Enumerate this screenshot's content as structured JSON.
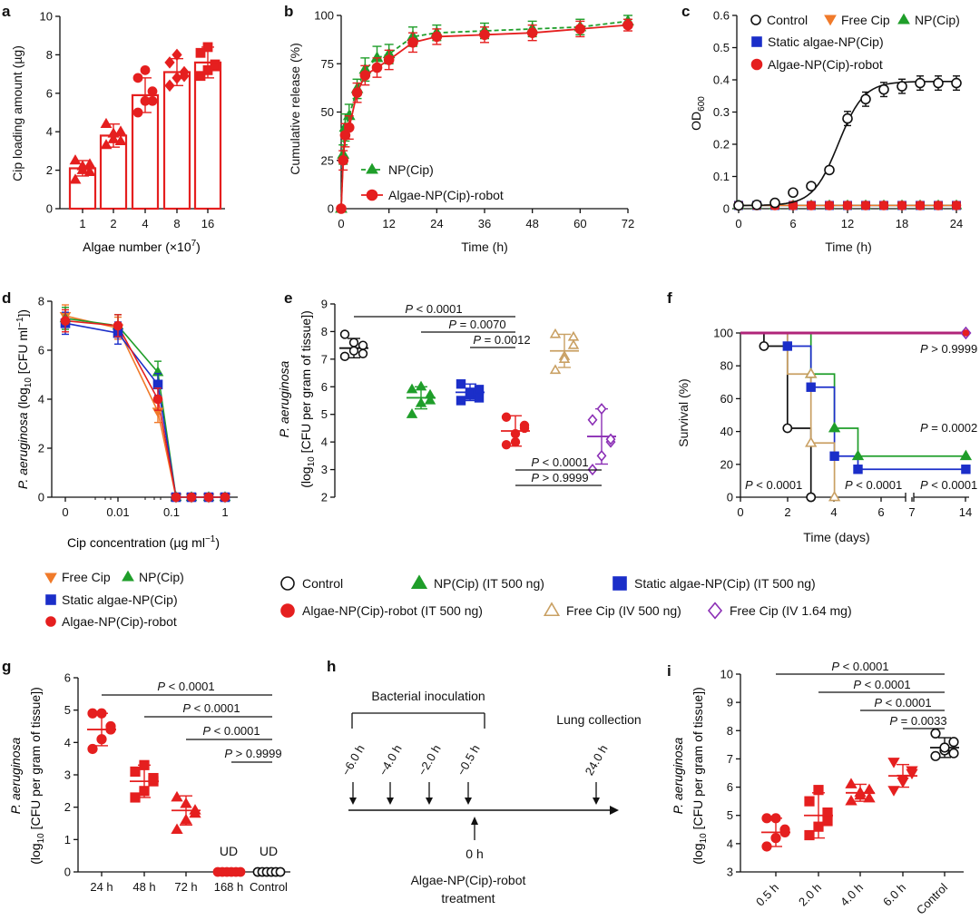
{
  "colors": {
    "control": "#111111",
    "free_cip": "#f07a2a",
    "np_cip": "#1f9e2a",
    "static": "#1b2ec9",
    "robot": "#e51f1f",
    "free_iv500": "#c9a063",
    "free_iv164": "#8b2fb5",
    "survival_all": "#b0247a"
  },
  "legend_mid": {
    "free_cip": "Free Cip",
    "np_cip": "NP(Cip)",
    "static": "Static algae-NP(Cip)",
    "robot": "Algae-NP(Cip)-robot",
    "control": "Control",
    "np_it": "NP(Cip) (IT 500 ng)",
    "static_it": "Static algae-NP(Cip) (IT 500 ng)",
    "robot_it": "Algae-NP(Cip)-robot (IT 500 ng)",
    "free_iv500": "Free Cip (IV 500 ng)",
    "free_iv164": "Free Cip (IV 1.64 mg)"
  },
  "panel_h_text": {
    "bacterial": "Bacterial inoculation",
    "lung": "Lung collection",
    "times": [
      "−6.0 h",
      "−4.0 h",
      "−2.0 h",
      "−0.5 h",
      "24.0 h"
    ],
    "zero": "0 h",
    "treat1": "Algae-NP(Cip)-robot",
    "treat2": "treatment"
  },
  "chart_data": [
    {
      "panel": "a",
      "type": "bar",
      "xlabel": "Algae number (×10⁷)",
      "ylabel": "Cip loading amount (µg)",
      "categories": [
        "1",
        "2",
        "4",
        "8",
        "16"
      ],
      "values": [
        2.1,
        3.8,
        5.9,
        7.1,
        7.6
      ],
      "errors": [
        0.4,
        0.6,
        0.9,
        0.7,
        0.8
      ],
      "points": [
        [
          1.5,
          2.0,
          2.3,
          2.5,
          2.2,
          1.9
        ],
        [
          3.3,
          3.6,
          4.0,
          4.4,
          3.9,
          3.5
        ],
        [
          5.0,
          5.6,
          6.1,
          6.8,
          7.2,
          5.6
        ],
        [
          6.4,
          6.8,
          7.1,
          7.6,
          8.0,
          6.9
        ],
        [
          6.9,
          7.2,
          7.5,
          8.1,
          8.4,
          7.4
        ]
      ],
      "ylim": [
        0,
        10
      ],
      "yticks": [
        0,
        2,
        4,
        6,
        8,
        10
      ]
    },
    {
      "panel": "b",
      "type": "line",
      "xlabel": "Time (h)",
      "ylabel": "Cumulative release (%)",
      "x": [
        0,
        0.5,
        1,
        2,
        4,
        6,
        9,
        12,
        18,
        24,
        36,
        48,
        60,
        72
      ],
      "series": [
        {
          "name": "NP(Cip)",
          "values": [
            0,
            28,
            42,
            48,
            62,
            72,
            78,
            80,
            89,
            91,
            92,
            93,
            94,
            97
          ],
          "errors": [
            0,
            5,
            7,
            6,
            5,
            6,
            6,
            5,
            5,
            4,
            4,
            4,
            4,
            3
          ]
        },
        {
          "name": "Algae-NP(Cip)-robot",
          "values": [
            0,
            25,
            38,
            42,
            60,
            69,
            73,
            77,
            86,
            89,
            90,
            91,
            93,
            95
          ],
          "errors": [
            0,
            5,
            6,
            6,
            5,
            5,
            5,
            5,
            5,
            4,
            4,
            4,
            4,
            3
          ]
        }
      ],
      "xticks": [
        0,
        12,
        24,
        36,
        48,
        60,
        72
      ],
      "yticks": [
        0,
        25,
        50,
        75,
        100
      ],
      "xlim": [
        0,
        72
      ],
      "ylim": [
        0,
        100
      ]
    },
    {
      "panel": "c",
      "type": "scatter",
      "xlabel": "Time (h)",
      "ylabel": "OD600",
      "ylabel_main": "OD",
      "ylabel_sub": "600",
      "x": [
        0,
        2,
        4,
        6,
        8,
        10,
        12,
        14,
        16,
        18,
        20,
        22,
        24
      ],
      "series": [
        {
          "name": "Control",
          "values": [
            0.01,
            0.012,
            0.018,
            0.05,
            0.07,
            0.12,
            0.28,
            0.34,
            0.37,
            0.38,
            0.39,
            0.39,
            0.39
          ]
        },
        {
          "name": "Free Cip",
          "values": [
            0.01,
            0.01,
            0.01,
            0.01,
            0.01,
            0.01,
            0.01,
            0.01,
            0.01,
            0.01,
            0.01,
            0.01,
            0.01
          ]
        },
        {
          "name": "NP(Cip)",
          "values": [
            0.01,
            0.01,
            0.01,
            0.01,
            0.01,
            0.01,
            0.01,
            0.01,
            0.01,
            0.01,
            0.01,
            0.01,
            0.01
          ]
        },
        {
          "name": "Static algae-NP(Cip)",
          "values": [
            0.01,
            0.01,
            0.01,
            0.01,
            0.01,
            0.01,
            0.01,
            0.01,
            0.01,
            0.01,
            0.01,
            0.01,
            0.01
          ]
        },
        {
          "name": "Algae-NP(Cip)-robot",
          "values": [
            0.01,
            0.01,
            0.01,
            0.01,
            0.01,
            0.01,
            0.01,
            0.01,
            0.01,
            0.01,
            0.01,
            0.01,
            0.01
          ]
        }
      ],
      "xticks": [
        0,
        6,
        12,
        18,
        24
      ],
      "yticks": [
        0,
        0.1,
        0.2,
        0.3,
        0.4,
        0.5,
        0.6
      ],
      "xlim": [
        0,
        24
      ],
      "ylim": [
        0,
        0.6
      ]
    },
    {
      "panel": "d",
      "type": "line",
      "xlabel": "Cip concentration (µg ml⁻¹)",
      "ylabel": "P. aeruginosa (log10 [CFU ml⁻¹])",
      "ylabel_italic": "P. aeruginosa",
      "ylabel_rest": "(log",
      "ylabel_sub": "10",
      "ylabel_end": " [CFU ml",
      "ylabel_sup": "−1",
      "ylabel_close": "])",
      "x": [
        0,
        0.01,
        0.05,
        0.1,
        0.2,
        0.5,
        1
      ],
      "series": [
        {
          "name": "Free Cip",
          "values": [
            7.4,
            6.9,
            3.5,
            0,
            0,
            0,
            0
          ]
        },
        {
          "name": "NP(Cip)",
          "values": [
            7.3,
            7.0,
            5.1,
            0,
            0,
            0,
            0
          ]
        },
        {
          "name": "Static algae-NP(Cip)",
          "values": [
            7.1,
            6.7,
            4.6,
            0,
            0,
            0,
            0
          ]
        },
        {
          "name": "Algae-NP(Cip)-robot",
          "values": [
            7.2,
            7.0,
            4.0,
            0,
            0,
            0,
            0
          ]
        }
      ],
      "xticks": [
        "0",
        "0.01",
        "0.1",
        "1"
      ],
      "yticks": [
        0,
        2,
        4,
        6,
        8
      ],
      "ylim": [
        0,
        8
      ]
    },
    {
      "panel": "e",
      "type": "scatter",
      "ylabel": "P. aeruginosa (log10 [CFU per gram of tissue])",
      "ylabel_italic": "P. aeruginosa",
      "ylabel_rest": "(log",
      "ylabel_sub": "10",
      "ylabel_end": " [CFU per gram of tissue])",
      "groups": [
        "Control",
        "NP(Cip) (IT 500 ng)",
        "Static algae-NP(Cip) (IT 500 ng)",
        "Algae-NP(Cip)-robot (IT 500 ng)",
        "Free Cip (IV 500 ng)",
        "Free Cip (IV 1.64 mg)"
      ],
      "means": [
        7.4,
        5.6,
        5.8,
        4.4,
        7.3,
        4.2
      ],
      "errors": [
        0.35,
        0.4,
        0.3,
        0.55,
        0.6,
        1.0
      ],
      "points": [
        [
          7.1,
          7.3,
          7.5,
          7.9,
          7.6,
          7.2
        ],
        [
          5.0,
          5.4,
          5.7,
          5.9,
          6.0,
          5.5
        ],
        [
          5.5,
          5.7,
          5.9,
          6.1,
          5.8,
          5.6
        ],
        [
          3.9,
          4.0,
          4.5,
          4.9,
          4.3,
          4.6
        ],
        [
          6.6,
          7.1,
          7.5,
          7.9,
          7.0,
          7.8
        ],
        [
          3.0,
          3.5,
          4.0,
          4.8,
          5.2,
          4.1
        ]
      ],
      "yticks": [
        2,
        3,
        4,
        5,
        6,
        7,
        8,
        9
      ],
      "ylim": [
        2,
        9
      ],
      "pvalues": [
        "P < 0.0001",
        "P = 0.0070",
        "P = 0.0012",
        "P < 0.0001",
        "P > 0.9999"
      ]
    },
    {
      "panel": "f",
      "type": "line",
      "xlabel": "Time (days)",
      "ylabel": "Survival (%)",
      "series": [
        {
          "name": "Control",
          "x": [
            0,
            1,
            1,
            2,
            2,
            3,
            3
          ],
          "values": [
            100,
            100,
            92,
            92,
            42,
            42,
            0
          ]
        },
        {
          "name": "NP(Cip) (IT 500 ng)",
          "x": [
            0,
            3,
            3,
            4,
            4,
            5,
            5,
            14
          ],
          "values": [
            100,
            100,
            75,
            75,
            42,
            42,
            25,
            25
          ]
        },
        {
          "name": "Static algae-NP(Cip) (IT 500 ng)",
          "x": [
            0,
            2,
            2,
            3,
            3,
            4,
            4,
            5,
            5,
            14
          ],
          "values": [
            100,
            100,
            92,
            92,
            67,
            67,
            25,
            25,
            17,
            17
          ]
        },
        {
          "name": "Free Cip (IV 500 ng)",
          "x": [
            0,
            2,
            2,
            3,
            3,
            4,
            4
          ],
          "values": [
            100,
            100,
            75,
            75,
            33,
            33,
            0
          ]
        },
        {
          "name": "Algae-NP(Cip)-robot / Free Cip (IV 1.64 mg)",
          "x": [
            0,
            14
          ],
          "values": [
            100,
            100
          ]
        }
      ],
      "xticks": [
        "0",
        "2",
        "4",
        "6",
        "7",
        "14"
      ],
      "yticks": [
        0,
        20,
        40,
        60,
        80,
        100
      ],
      "ylim": [
        0,
        100
      ],
      "pvalues": [
        "P > 0.9999",
        "P = 0.0002",
        "P < 0.0001",
        "P < 0.0001",
        "P < 0.0001"
      ]
    },
    {
      "panel": "g",
      "type": "scatter",
      "ylabel": "P. aeruginosa (log10 [CFU per gram of tissue])",
      "ylabel_italic": "P. aeruginosa",
      "ylabel_rest": "(log",
      "ylabel_sub": "10",
      "ylabel_end": " [CFU per gram of tissue])",
      "categories": [
        "24 h",
        "48 h",
        "72 h",
        "168 h",
        "Control"
      ],
      "means": [
        4.4,
        2.8,
        1.9,
        0,
        0
      ],
      "errors": [
        0.5,
        0.5,
        0.45,
        0,
        0
      ],
      "points": [
        [
          3.8,
          4.1,
          4.5,
          4.9,
          4.9,
          4.4
        ],
        [
          2.3,
          2.5,
          2.8,
          3.1,
          3.3,
          2.9
        ],
        [
          1.3,
          1.6,
          1.9,
          2.3,
          2.1,
          1.8
        ],
        [
          0,
          0,
          0,
          0,
          0,
          0
        ],
        [
          0,
          0,
          0,
          0,
          0,
          0
        ]
      ],
      "annotations": [
        "UD",
        "UD"
      ],
      "yticks": [
        0,
        1,
        2,
        3,
        4,
        5,
        6
      ],
      "ylim": [
        0,
        6
      ],
      "pvalues": [
        "P < 0.0001",
        "P < 0.0001",
        "P < 0.0001",
        "P > 0.9999"
      ]
    },
    {
      "panel": "i",
      "type": "scatter",
      "ylabel": "P. aeruginosa (log10 [CFU per gram of tissue])",
      "ylabel_italic": "P. aeruginosa",
      "ylabel_rest": "(log",
      "ylabel_sub": "10",
      "ylabel_end": " [CFU per gram of tissue])",
      "categories": [
        "0.5 h",
        "2.0 h",
        "4.0 h",
        "6.0 h",
        "Control"
      ],
      "means": [
        4.4,
        5.0,
        5.8,
        6.4,
        7.4
      ],
      "errors": [
        0.5,
        0.8,
        0.3,
        0.4,
        0.35
      ],
      "points": [
        [
          3.9,
          4.2,
          4.5,
          4.9,
          4.9,
          4.4
        ],
        [
          4.3,
          4.6,
          5.1,
          5.5,
          5.9,
          4.8
        ],
        [
          5.5,
          5.7,
          5.9,
          6.1,
          5.8,
          5.6
        ],
        [
          5.9,
          6.2,
          6.5,
          6.9,
          6.3,
          6.6
        ],
        [
          7.1,
          7.3,
          7.6,
          7.9,
          7.4,
          7.2
        ]
      ],
      "yticks": [
        3,
        4,
        5,
        6,
        7,
        8,
        9,
        10
      ],
      "ylim": [
        3,
        10
      ],
      "pvalues": [
        "P < 0.0001",
        "P < 0.0001",
        "P < 0.0001",
        "P = 0.0033"
      ]
    }
  ]
}
